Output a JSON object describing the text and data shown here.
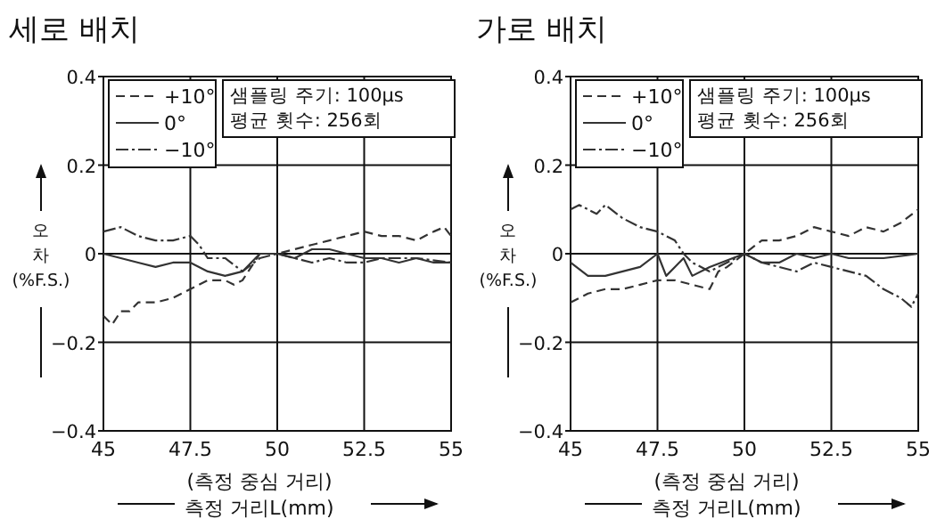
{
  "chart_data": [
    {
      "type": "line",
      "title": "세로 배치",
      "xlabel": "(측정 중심 거리)\n측정 거리L(mm)",
      "ylabel": "오차 (%F.S.)",
      "annotations": [
        "샘플링 주기: 100μs",
        "평균 횟수: 256회"
      ],
      "xlim": [
        45,
        55
      ],
      "ylim": [
        -0.4,
        0.4
      ],
      "xticks": [
        45,
        47.5,
        50,
        52.5,
        55
      ],
      "yticks": [
        -0.4,
        -0.2,
        0,
        0.2,
        0.4
      ],
      "grid": true,
      "legend": "top left",
      "series": [
        {
          "name": "+10°",
          "color": "#333333",
          "line_style": "dashed",
          "x": [
            45,
            45.25,
            45.5,
            45.75,
            46,
            46.5,
            47,
            47.5,
            48,
            48.5,
            48.75,
            49,
            49.25,
            49.5,
            50,
            50.5,
            51,
            51.5,
            52,
            52.5,
            53,
            53.5,
            54,
            54.5,
            54.8,
            55
          ],
          "values": [
            -0.14,
            -0.16,
            -0.13,
            -0.13,
            -0.11,
            -0.11,
            -0.1,
            -0.08,
            -0.06,
            -0.06,
            -0.07,
            -0.06,
            -0.03,
            0,
            0,
            0.01,
            0.02,
            0.03,
            0.04,
            0.05,
            0.04,
            0.04,
            0.03,
            0.05,
            0.06,
            0.04
          ]
        },
        {
          "name": "0°",
          "color": "#333333",
          "line_style": "solid",
          "x": [
            45,
            45.5,
            46,
            46.5,
            47,
            47.5,
            48,
            48.5,
            49,
            49.25,
            49.5,
            50,
            50.5,
            51,
            51.5,
            52,
            52.5,
            53,
            53.5,
            54,
            54.5,
            55
          ],
          "values": [
            0,
            -0.01,
            -0.02,
            -0.03,
            -0.02,
            -0.02,
            -0.04,
            -0.05,
            -0.04,
            -0.02,
            0,
            0,
            -0.01,
            0.01,
            0.01,
            0,
            -0.01,
            -0.01,
            -0.02,
            -0.01,
            -0.02,
            -0.02
          ]
        },
        {
          "name": "−10°",
          "color": "#333333",
          "line_style": "dashdot",
          "x": [
            45,
            45.5,
            46,
            46.5,
            47,
            47.5,
            47.75,
            48,
            48.5,
            49,
            49.5,
            50,
            50.5,
            51,
            51.5,
            52,
            52.5,
            53,
            54,
            55
          ],
          "values": [
            0.05,
            0.06,
            0.04,
            0.03,
            0.03,
            0.04,
            0.02,
            -0.01,
            -0.01,
            -0.04,
            -0.01,
            0,
            -0.01,
            -0.02,
            -0.01,
            -0.02,
            -0.02,
            -0.01,
            -0.01,
            -0.02
          ]
        }
      ]
    },
    {
      "type": "line",
      "title": "가로 배치",
      "xlabel": "(측정 중심 거리)\n측정 거리L(mm)",
      "ylabel": "오차 (%F.S.)",
      "annotations": [
        "샘플링 주기: 100μs",
        "평균 횟수: 256회"
      ],
      "xlim": [
        45,
        55
      ],
      "ylim": [
        -0.4,
        0.4
      ],
      "xticks": [
        45,
        47.5,
        50,
        52.5,
        55
      ],
      "yticks": [
        -0.4,
        -0.2,
        0,
        0.2,
        0.4
      ],
      "grid": true,
      "legend": "top left",
      "series": [
        {
          "name": "+10°",
          "color": "#333333",
          "line_style": "dashed",
          "x": [
            45,
            45.5,
            46,
            46.5,
            47,
            47.5,
            48,
            48.5,
            49,
            49.25,
            49.5,
            50,
            50.5,
            51,
            51.5,
            52,
            52.5,
            53,
            53.5,
            54,
            54.5,
            55
          ],
          "values": [
            -0.11,
            -0.09,
            -0.08,
            -0.08,
            -0.07,
            -0.06,
            -0.06,
            -0.07,
            -0.08,
            -0.04,
            -0.03,
            0,
            0.03,
            0.03,
            0.04,
            0.06,
            0.05,
            0.04,
            0.06,
            0.05,
            0.07,
            0.1
          ]
        },
        {
          "name": "0°",
          "color": "#333333",
          "line_style": "solid",
          "x": [
            45,
            45.5,
            46,
            46.5,
            47,
            47.5,
            47.75,
            48,
            48.25,
            48.5,
            49,
            50,
            50.5,
            51,
            51.5,
            52,
            52.5,
            53,
            54,
            55
          ],
          "values": [
            -0.02,
            -0.05,
            -0.05,
            -0.04,
            -0.03,
            0,
            -0.05,
            -0.03,
            -0.01,
            -0.05,
            -0.03,
            0,
            -0.02,
            -0.02,
            0,
            -0.01,
            0,
            -0.01,
            -0.01,
            0
          ]
        },
        {
          "name": "−10°",
          "color": "#333333",
          "line_style": "dashdot",
          "x": [
            45,
            45.25,
            45.5,
            45.75,
            46,
            46.5,
            47,
            47.5,
            48,
            48.25,
            48.5,
            49,
            49.5,
            50,
            50.5,
            51,
            51.5,
            52,
            52.5,
            53,
            53.5,
            54,
            54.5,
            54.8,
            55
          ],
          "values": [
            0.1,
            0.11,
            0.1,
            0.09,
            0.11,
            0.08,
            0.06,
            0.05,
            0.03,
            0,
            -0.02,
            -0.04,
            -0.02,
            0,
            -0.02,
            -0.03,
            -0.04,
            -0.02,
            -0.03,
            -0.04,
            -0.05,
            -0.08,
            -0.1,
            -0.12,
            -0.09
          ]
        }
      ]
    }
  ]
}
